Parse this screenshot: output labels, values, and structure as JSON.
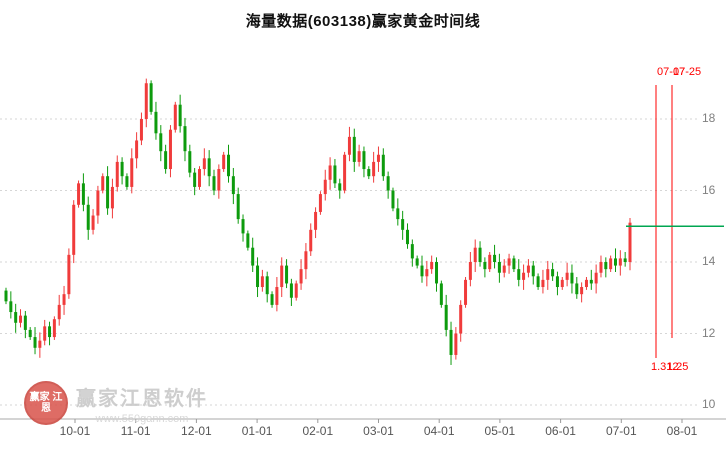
{
  "title": "海量数据(603138)赢家黄金时间线",
  "watermark": {
    "logo_text": "赢家 江恩",
    "brand": "赢家江恩软件",
    "url": "www.550gann.com"
  },
  "chart_data": {
    "type": "candlestick",
    "title": "海量数据(603138)赢家黄金时间线",
    "xlabel": "",
    "ylabel": "",
    "ylim": [
      9.6,
      20.1
    ],
    "grid": "dotted-horizontal",
    "y_ticks": [
      18,
      16,
      14,
      12,
      10
    ],
    "x_tick_labels": [
      "10-01",
      "11-01",
      "12-01",
      "01-01",
      "02-01",
      "03-01",
      "04-01",
      "05-01",
      "06-01",
      "07-01",
      "08-01"
    ],
    "up_color": "#f03b3b",
    "down_color": "#0d9b0d",
    "annotation_color": "#ff0000",
    "first_open": 13.2,
    "closes": [
      12.9,
      12.6,
      12.3,
      12.5,
      12.1,
      11.9,
      11.6,
      11.8,
      12.2,
      11.9,
      12.4,
      12.8,
      13.1,
      14.2,
      15.6,
      16.2,
      15.6,
      14.9,
      15.3,
      16.0,
      16.4,
      15.5,
      16.1,
      16.8,
      16.4,
      16.1,
      16.9,
      17.4,
      18.0,
      19.0,
      18.2,
      17.6,
      17.1,
      16.6,
      17.7,
      18.4,
      17.8,
      17.1,
      16.5,
      16.1,
      16.6,
      16.9,
      16.4,
      16.0,
      16.6,
      17.0,
      16.4,
      15.9,
      15.2,
      14.8,
      14.4,
      13.9,
      13.3,
      13.6,
      13.1,
      12.8,
      13.3,
      13.9,
      13.4,
      13.0,
      13.4,
      13.8,
      14.3,
      14.9,
      15.4,
      15.9,
      16.3,
      16.7,
      16.2,
      16.0,
      17.0,
      17.5,
      16.8,
      17.1,
      16.6,
      16.4,
      16.8,
      17.0,
      16.4,
      16.0,
      15.5,
      15.2,
      14.9,
      14.5,
      14.1,
      13.9,
      13.6,
      13.8,
      14.0,
      13.4,
      12.8,
      12.1,
      11.4,
      12.0,
      12.8,
      13.5,
      14.0,
      14.4,
      14.0,
      13.8,
      14.2,
      14.0,
      13.7,
      13.9,
      14.1,
      13.8,
      13.5,
      13.7,
      13.9,
      13.6,
      13.3,
      13.5,
      13.8,
      13.6,
      13.3,
      13.5,
      13.7,
      13.4,
      13.1,
      13.3,
      13.5,
      13.4,
      13.7,
      14.0,
      13.8,
      14.1,
      13.9,
      14.1,
      14.0,
      15.1
    ],
    "current_price_line": {
      "price": 15.0,
      "color": "#00a651"
    },
    "time_lines": [
      {
        "date": "07-17",
        "ratio": "1.312"
      },
      {
        "date": "07-25",
        "ratio": "1.25"
      }
    ]
  }
}
